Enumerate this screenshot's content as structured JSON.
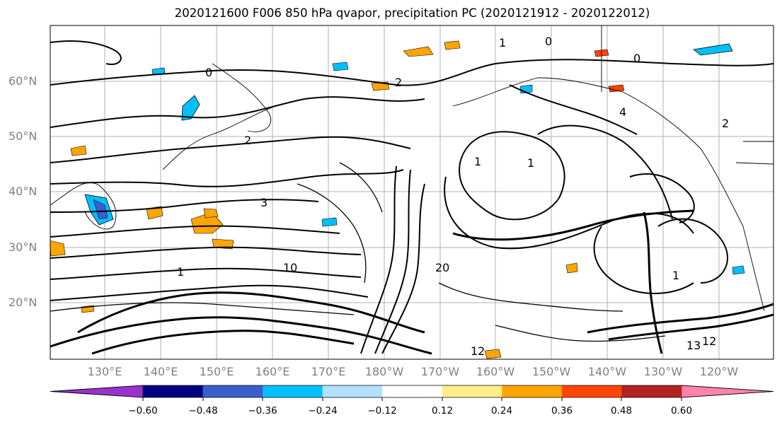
{
  "title": "2020121600 F006 850 hPa qvapor, precipitation PC (2020121912 - 2020122012)",
  "map": {
    "lat_labels": [
      "60°N",
      "50°N",
      "40°N",
      "30°N",
      "20°N"
    ],
    "lon_labels": [
      "130°E",
      "140°E",
      "150°E",
      "160°E",
      "170°E",
      "180°W",
      "170°W",
      "160°W",
      "150°W",
      "140°W",
      "130°W",
      "120°W"
    ],
    "contour_labels": [
      "0",
      "0",
      "0",
      "1",
      "1",
      "2",
      "2",
      "3",
      "4",
      "1",
      "1",
      "2",
      "1",
      "10",
      "20",
      "12",
      "12",
      "13"
    ]
  },
  "colorbar": {
    "colors": [
      "#9932cc",
      "#000080",
      "#3a5fcd",
      "#00bfff",
      "#b0e2ff",
      "#ffffff",
      "#ffec8b",
      "#ffa500",
      "#ff4500",
      "#b22222",
      "#ff82ab"
    ],
    "tick_labels": [
      "−0.60",
      "−0.48",
      "−0.36",
      "−0.24",
      "−0.12",
      "0.12",
      "0.24",
      "0.36",
      "0.48",
      "0.60"
    ]
  }
}
